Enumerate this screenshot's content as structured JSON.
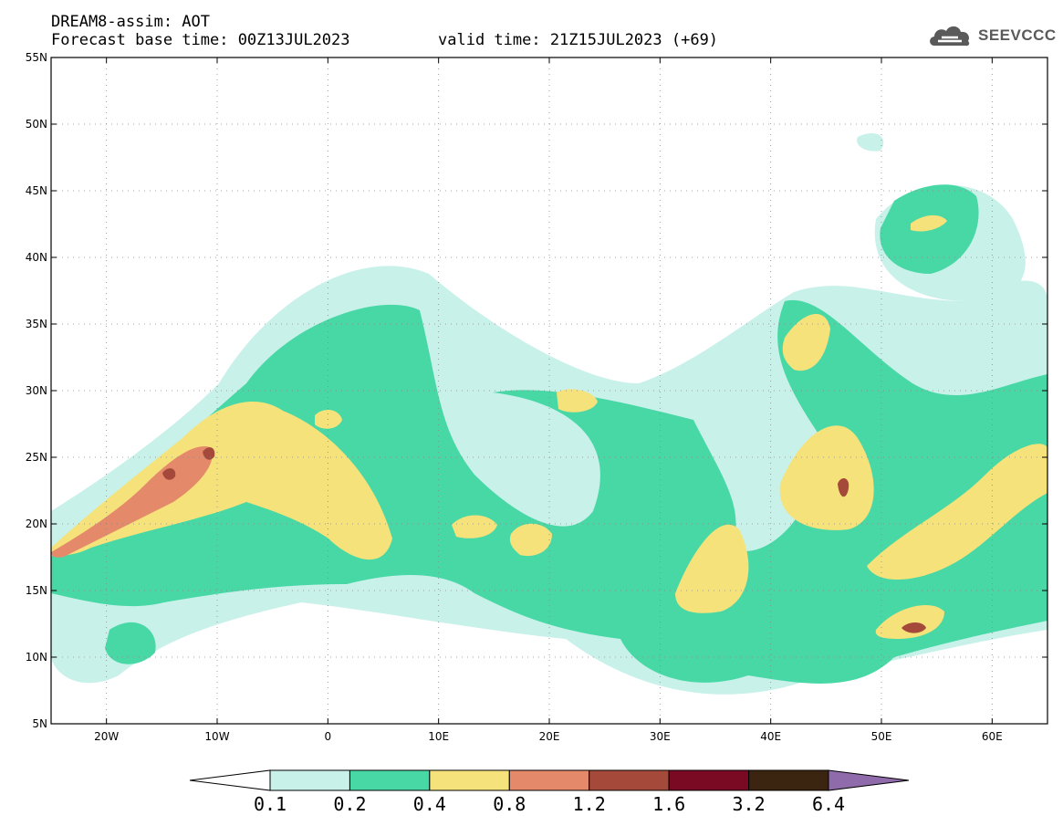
{
  "header": {
    "title": "DREAM8-assim: AOT",
    "base_time": "Forecast base time: 00Z13JUL2023",
    "valid_time": "valid time: 21Z15JUL2023 (+69)"
  },
  "logo": {
    "text": "SEEVCCC",
    "icon": "cloud-icon"
  },
  "map": {
    "lon_range": [
      -25,
      65
    ],
    "lat_range": [
      5,
      55
    ],
    "lat_ticks": [
      "55N",
      "50N",
      "45N",
      "40N",
      "35N",
      "30N",
      "25N",
      "20N",
      "15N",
      "10N",
      "5N"
    ],
    "lon_ticks": [
      "20W",
      "10W",
      "0",
      "10E",
      "20E",
      "30E",
      "40E",
      "50E",
      "60E"
    ],
    "grid": true
  },
  "colorbar": {
    "labels": [
      "0.1",
      "0.2",
      "0.4",
      "0.8",
      "1.2",
      "1.6",
      "3.2",
      "6.4"
    ],
    "colors": [
      "#ffffff",
      "#c8f1ea",
      "#48d8a6",
      "#f5e27a",
      "#e5896b",
      "#a54a3a",
      "#7a0a23",
      "#3b2510",
      "#8f6bab"
    ]
  },
  "legend_colors": {
    "aot_0_1": "#c8f1ea",
    "aot_0_2": "#48d8a6",
    "aot_0_4": "#f5e27a",
    "aot_0_8": "#e5896b",
    "aot_1_2": "#a54a3a"
  }
}
